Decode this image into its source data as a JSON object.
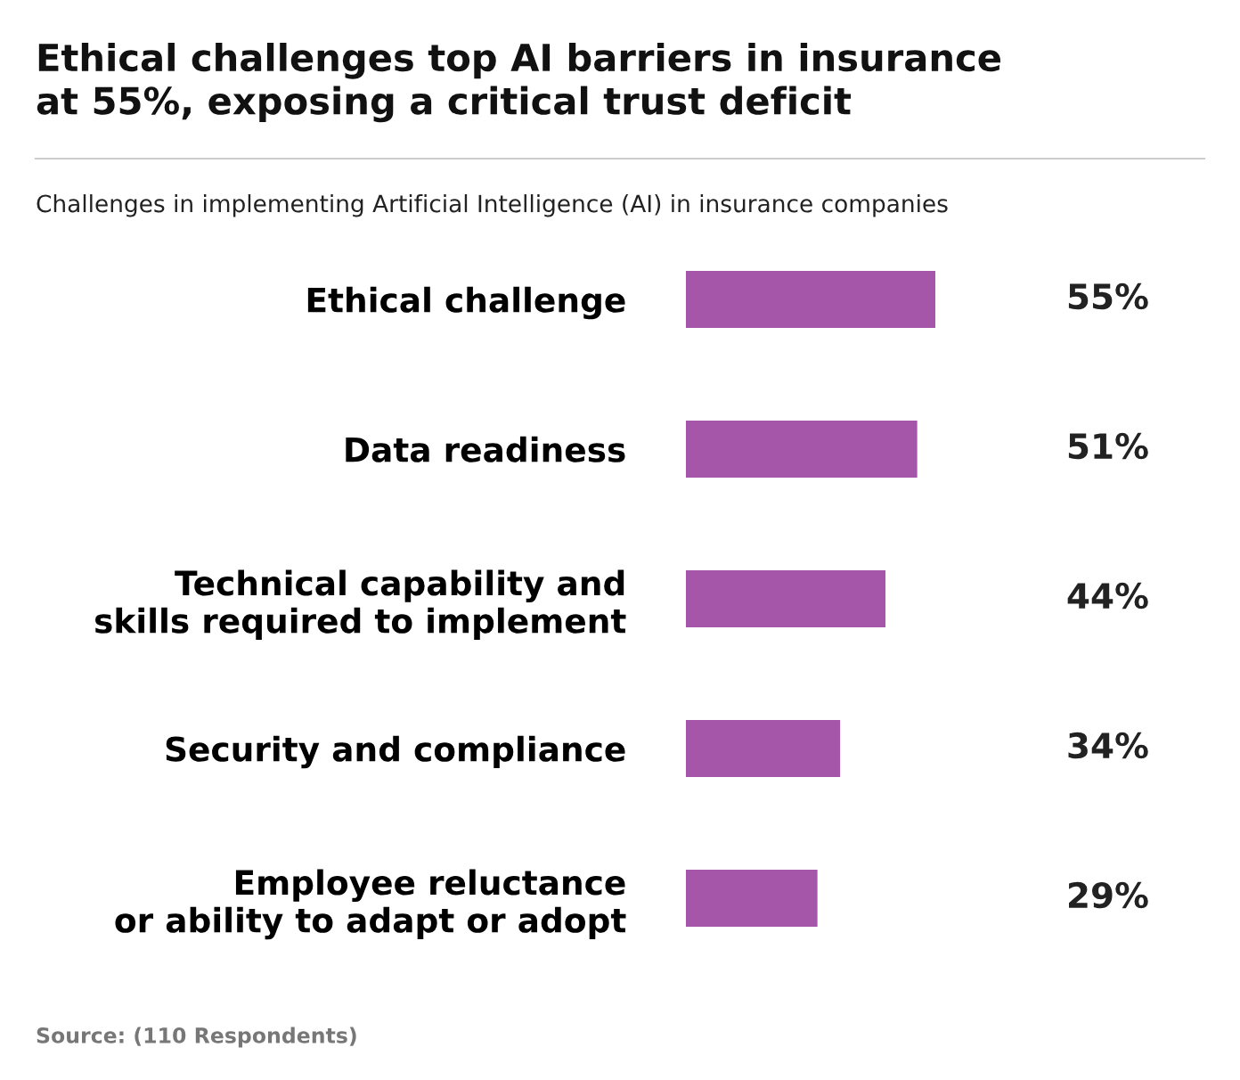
{
  "chart_data": {
    "type": "bar",
    "orientation": "horizontal",
    "title": "Ethical challenges top AI barriers in insurance\nat 55%, exposing a critical trust deficit",
    "subtitle": "Challenges in implementing Artificial Intelligence (AI) in insurance companies",
    "categories": [
      "Ethical challenge",
      "Data readiness",
      "Technical capability and\nskills required to implement",
      "Security and compliance",
      "Employee reluctance\nor ability to adapt or adopt"
    ],
    "values": [
      55,
      51,
      44,
      34,
      29
    ],
    "value_labels": [
      "55%",
      "51%",
      "44%",
      "34%",
      "29%"
    ],
    "color": "#a656a8",
    "tick_labels": false,
    "grid": false,
    "legend": false,
    "annotations": [
      "Source: (110 Respondents)"
    ]
  }
}
